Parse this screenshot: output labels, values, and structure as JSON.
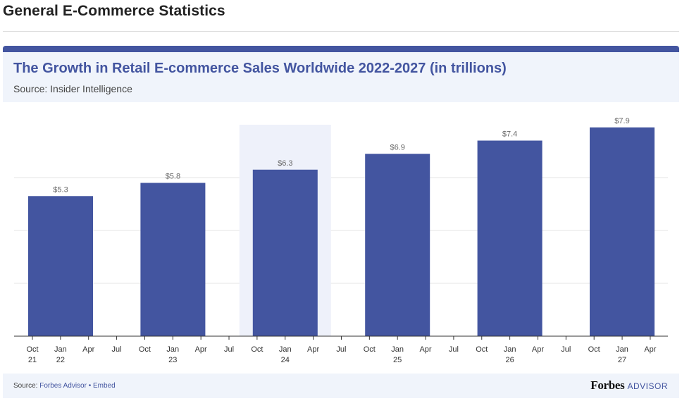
{
  "page": {
    "heading": "General E-Commerce Statistics"
  },
  "card": {
    "title": "The Growth in Retail E-commerce Sales Worldwide 2022-2027 (in trillions)",
    "subtitle": "Source: Insider Intelligence"
  },
  "footer": {
    "source_prefix": "Source: ",
    "source_link": "Forbes Advisor",
    "separator": " • ",
    "embed_link": "Embed",
    "brand_name": "Forbes",
    "brand_suffix": "ADVISOR"
  },
  "colors": {
    "bar": "#4355a0",
    "highlight": "#eef1fa",
    "grid": "#e6e6e6",
    "axis": "#333333",
    "label": "#666666"
  },
  "chart_data": {
    "type": "bar",
    "title": "The Growth in Retail E-commerce Sales Worldwide 2022-2027 (in trillions)",
    "xlabel": "",
    "ylabel": "",
    "ylim": [
      0,
      8.0
    ],
    "grid": true,
    "unit_prefix": "$",
    "categories": [
      "2022",
      "2023",
      "2024",
      "2025",
      "2026",
      "2027"
    ],
    "values": [
      5.3,
      5.8,
      6.3,
      6.9,
      7.4,
      7.9
    ],
    "data_labels": [
      "$5.3",
      "$5.8",
      "$6.3",
      "$6.9",
      "$7.4",
      "$7.9"
    ],
    "highlighted_category": "2024",
    "x_ticks": [
      {
        "month": "Oct",
        "year": "21"
      },
      {
        "month": "Jan",
        "year": "22"
      },
      {
        "month": "Apr",
        "year": ""
      },
      {
        "month": "Jul",
        "year": ""
      },
      {
        "month": "Oct",
        "year": ""
      },
      {
        "month": "Jan",
        "year": "23"
      },
      {
        "month": "Apr",
        "year": ""
      },
      {
        "month": "Jul",
        "year": ""
      },
      {
        "month": "Oct",
        "year": ""
      },
      {
        "month": "Jan",
        "year": "24"
      },
      {
        "month": "Apr",
        "year": ""
      },
      {
        "month": "Jul",
        "year": ""
      },
      {
        "month": "Oct",
        "year": ""
      },
      {
        "month": "Jan",
        "year": "25"
      },
      {
        "month": "Apr",
        "year": ""
      },
      {
        "month": "Jul",
        "year": ""
      },
      {
        "month": "Oct",
        "year": ""
      },
      {
        "month": "Jan",
        "year": "26"
      },
      {
        "month": "Apr",
        "year": ""
      },
      {
        "month": "Jul",
        "year": ""
      },
      {
        "month": "Oct",
        "year": ""
      },
      {
        "month": "Jan",
        "year": "27"
      },
      {
        "month": "Apr",
        "year": ""
      }
    ]
  }
}
